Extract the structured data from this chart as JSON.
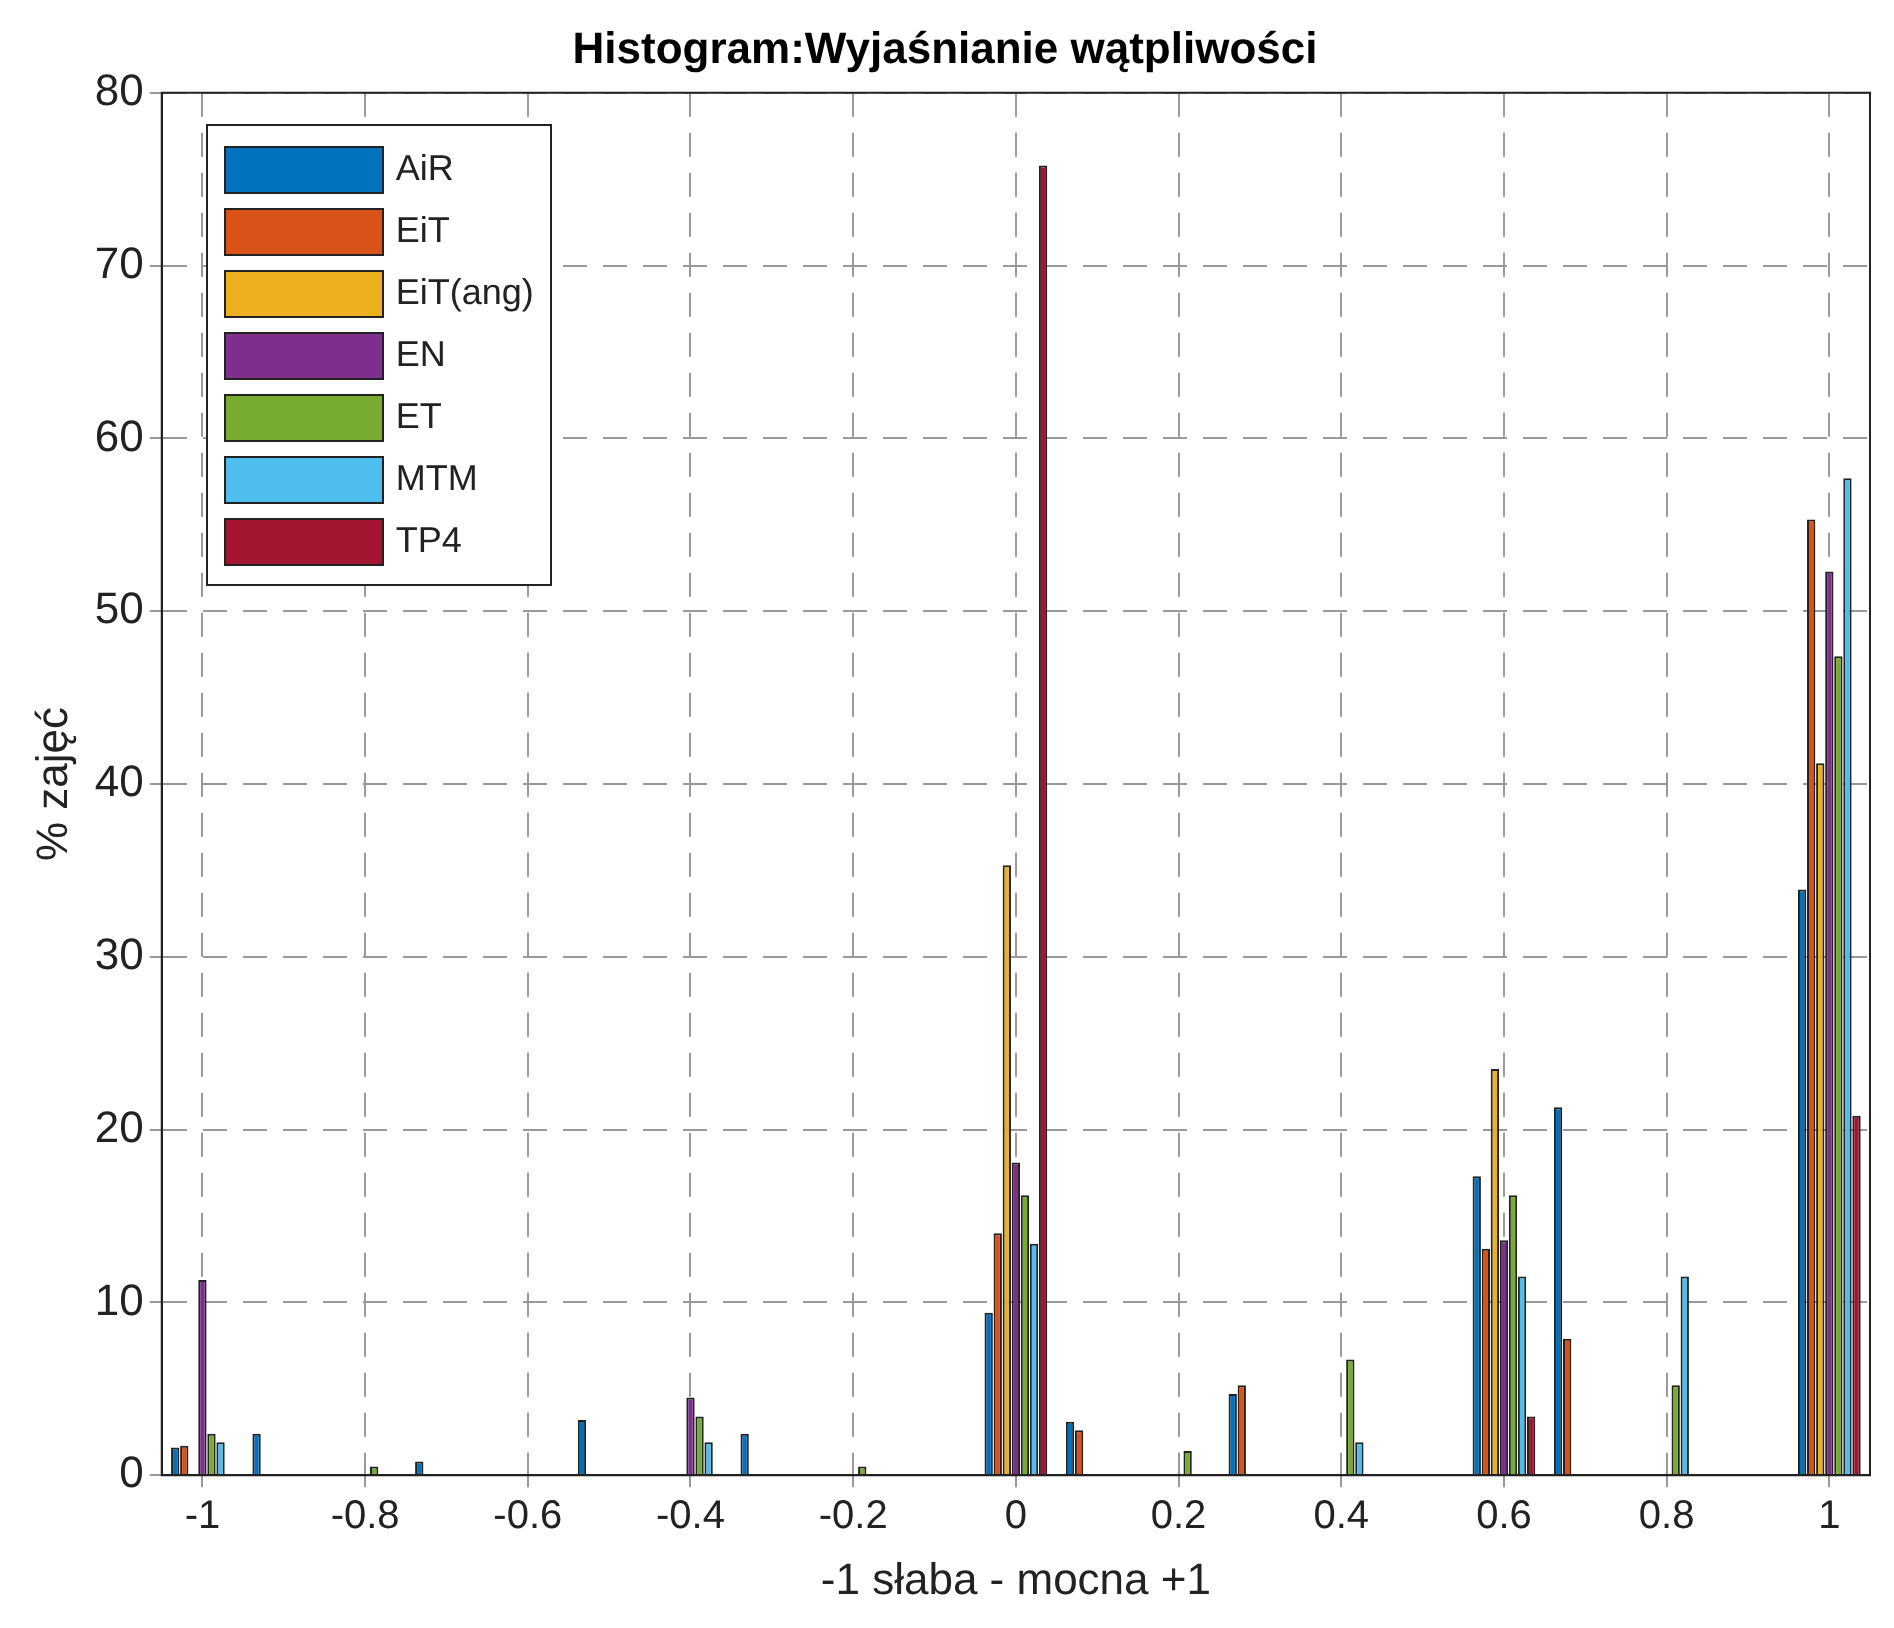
{
  "chart_data": {
    "type": "bar",
    "title": "Histogram:Wyjaśnianie wątpliwości",
    "xlabel": "-1 słaba - mocna +1",
    "ylabel": "% zajęć",
    "categories": [
      "-1",
      null,
      "-0.8",
      null,
      "-0.6",
      null,
      "-0.4",
      null,
      "-0.2",
      null,
      "0",
      null,
      "0.2",
      null,
      "0.4",
      null,
      "0.6",
      null,
      "0.8",
      null,
      "1"
    ],
    "series": [
      {
        "name": "AiR",
        "color": "#0072bd",
        "values": [
          1.6,
          2.4,
          0,
          0.8,
          0,
          3.2,
          0,
          2.4,
          0,
          0,
          9.4,
          3.1,
          0,
          4.7,
          0,
          0,
          17.3,
          21.3,
          0,
          0,
          33.9
        ]
      },
      {
        "name": "EiT",
        "color": "#d95319",
        "values": [
          1.7,
          0,
          0,
          0,
          0,
          0,
          0,
          0,
          0,
          0,
          14,
          2.6,
          0,
          5.2,
          0,
          0,
          13.1,
          7.9,
          0,
          0,
          55.3
        ]
      },
      {
        "name": "EiT(ang)",
        "color": "#edb120",
        "values": [
          0,
          0,
          0,
          0,
          0,
          0,
          0,
          0,
          0,
          0,
          35.3,
          0,
          0,
          0,
          0,
          0,
          23.5,
          0,
          0,
          0,
          41.2
        ]
      },
      {
        "name": "EN",
        "color": "#7e2f8e",
        "values": [
          11.3,
          0,
          0,
          0,
          0,
          0,
          4.5,
          0,
          0,
          0,
          18.1,
          0,
          0,
          0,
          0,
          0,
          13.6,
          0,
          0,
          0,
          52.3
        ]
      },
      {
        "name": "ET",
        "color": "#77ac30",
        "values": [
          2.4,
          0,
          0.5,
          0,
          0,
          0,
          3.4,
          0,
          0.5,
          0,
          16.2,
          0,
          1.4,
          0,
          6.7,
          0,
          16.2,
          0,
          5.2,
          0,
          47.4
        ]
      },
      {
        "name": "MTM",
        "color": "#4dbeee",
        "values": [
          1.9,
          0,
          0,
          0,
          0,
          0,
          1.9,
          0,
          0,
          0,
          13.4,
          0,
          0,
          0,
          1.9,
          0,
          11.5,
          0,
          11.5,
          0,
          57.7
        ]
      },
      {
        "name": "TP4",
        "color": "#a2142f",
        "values": [
          0,
          0,
          0,
          0,
          0,
          0,
          0,
          0,
          0,
          0,
          75.8,
          0,
          0,
          0,
          0,
          0,
          3.4,
          0,
          0,
          0,
          20.8
        ]
      }
    ],
    "ylim": [
      0,
      80
    ],
    "yticks": [
      0,
      10,
      20,
      30,
      40,
      50,
      60,
      70,
      80
    ],
    "grid": true,
    "legend": "top left"
  }
}
